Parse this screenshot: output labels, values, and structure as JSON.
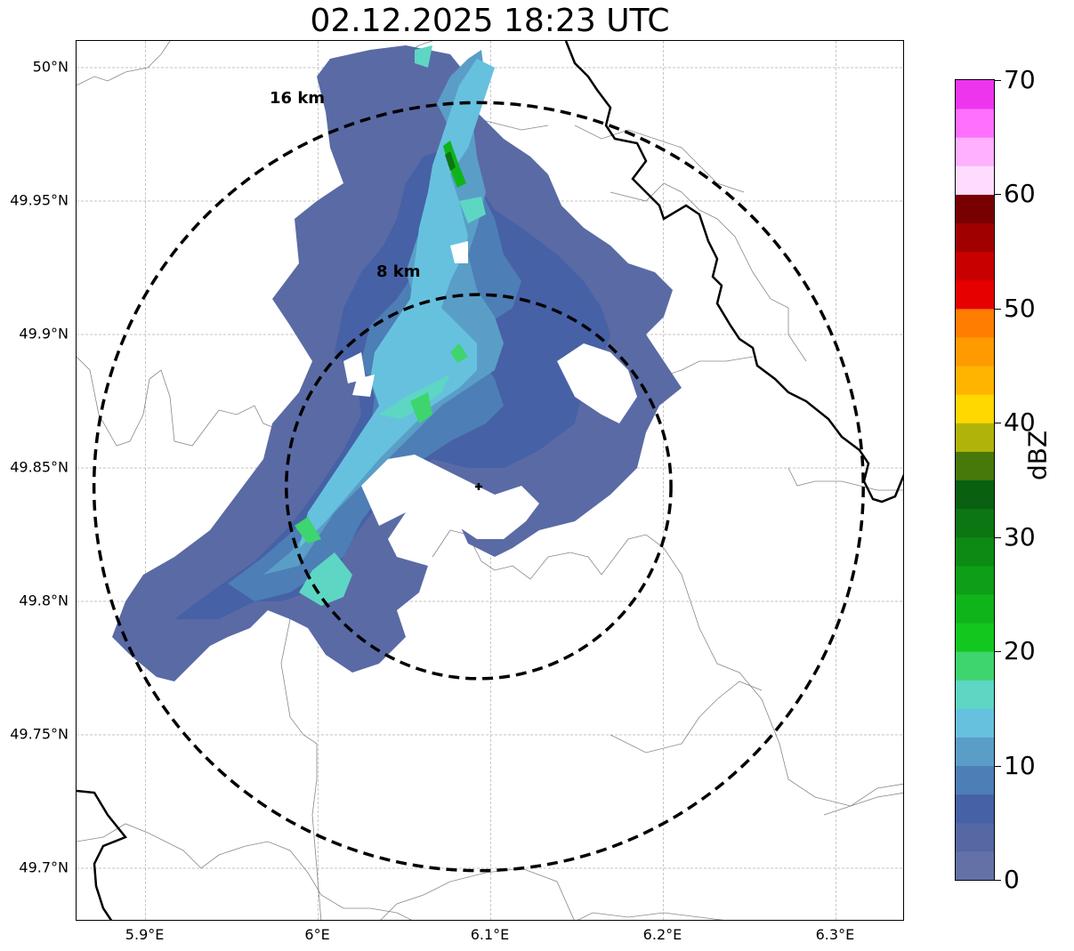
{
  "title": "02.12.2025 18:23 UTC",
  "map": {
    "lon_range": [
      5.86,
      6.34
    ],
    "lat_range": [
      49.68,
      50.01
    ],
    "gridlines": true,
    "lat_ticks": [
      {
        "value": 50.0,
        "label": "50°N"
      },
      {
        "value": 49.95,
        "label": "49.95°N"
      },
      {
        "value": 49.9,
        "label": "49.9°N"
      },
      {
        "value": 49.85,
        "label": "49.85°N"
      },
      {
        "value": 49.8,
        "label": "49.8°N"
      },
      {
        "value": 49.75,
        "label": "49.75°N"
      },
      {
        "value": 49.7,
        "label": "49.7°N"
      }
    ],
    "lon_ticks": [
      {
        "value": 5.9,
        "label": "5.9°E"
      },
      {
        "value": 6.0,
        "label": "6°E"
      },
      {
        "value": 6.1,
        "label": "6.1°E"
      },
      {
        "value": 6.2,
        "label": "6.2°E"
      },
      {
        "value": 6.3,
        "label": "6.3°E"
      }
    ],
    "radar_site": {
      "lon": 6.093,
      "lat": 49.843,
      "marker": "plus-icon"
    },
    "range_rings": [
      {
        "radius_km": 8,
        "label": "8 km"
      },
      {
        "radius_km": 16,
        "label": "16 km"
      }
    ],
    "line_color": "#000000",
    "border_color": "#888888"
  },
  "colorbar": {
    "label": "dBZ",
    "min": 0,
    "max": 70,
    "ticks": [
      {
        "value": 0,
        "label": "0"
      },
      {
        "value": 10,
        "label": "10"
      },
      {
        "value": 20,
        "label": "20"
      },
      {
        "value": 30,
        "label": "30"
      },
      {
        "value": 40,
        "label": "40"
      },
      {
        "value": 50,
        "label": "50"
      },
      {
        "value": 60,
        "label": "60"
      },
      {
        "value": 70,
        "label": "70"
      }
    ],
    "colors": [
      "#6471a8",
      "#5568a3",
      "#4661a6",
      "#4d7eb5",
      "#5a9ec8",
      "#66c1df",
      "#5ed6c4",
      "#3ed46e",
      "#12c81e",
      "#0fb41a",
      "#0e9e17",
      "#0c8a14",
      "#0b7612",
      "#086010",
      "#46780a",
      "#b0b40a",
      "#ffd800",
      "#ffb400",
      "#ff9b00",
      "#ff7d00",
      "#e60000",
      "#c80000",
      "#a00000",
      "#780000",
      "#ffdcff",
      "#ffb0ff",
      "#ff70ff",
      "#ee35ee"
    ]
  }
}
